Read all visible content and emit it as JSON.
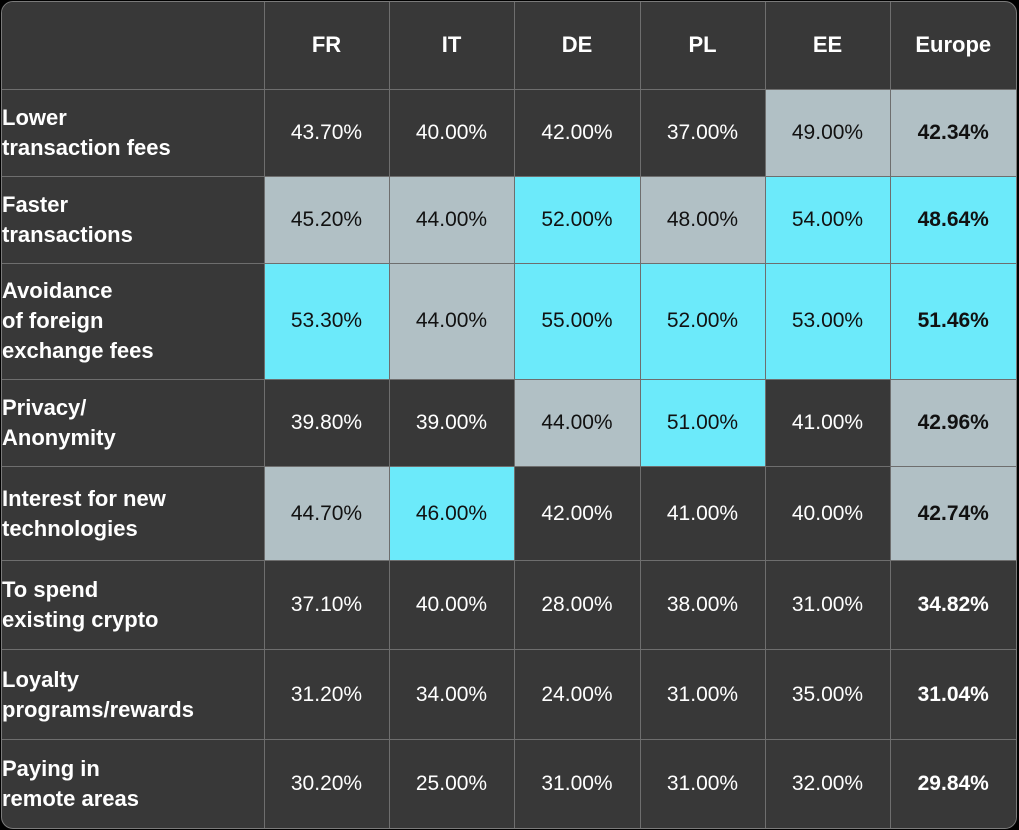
{
  "table": {
    "columns": [
      "FR",
      "IT",
      "DE",
      "PL",
      "EE",
      "Europe"
    ],
    "rows": [
      {
        "label": "Lower\ntransaction fees",
        "values": [
          "43.70%",
          "40.00%",
          "42.00%",
          "37.00%",
          "49.00%",
          "42.34%"
        ],
        "levels": [
          0,
          0,
          0,
          0,
          1,
          1
        ]
      },
      {
        "label": "Faster\ntransactions",
        "values": [
          "45.20%",
          "44.00%",
          "52.00%",
          "48.00%",
          "54.00%",
          "48.64%"
        ],
        "levels": [
          1,
          1,
          2,
          1,
          2,
          2
        ]
      },
      {
        "label": "Avoidance\nof foreign\nexchange fees",
        "values": [
          "53.30%",
          "44.00%",
          "55.00%",
          "52.00%",
          "53.00%",
          "51.46%"
        ],
        "levels": [
          2,
          1,
          2,
          2,
          2,
          2
        ]
      },
      {
        "label": "Privacy/\nAnonymity",
        "values": [
          "39.80%",
          "39.00%",
          "44.00%",
          "51.00%",
          "41.00%",
          "42.96%"
        ],
        "levels": [
          0,
          0,
          1,
          2,
          0,
          1
        ]
      },
      {
        "label": "Interest for new\ntechnologies",
        "values": [
          "44.70%",
          "46.00%",
          "42.00%",
          "41.00%",
          "40.00%",
          "42.74%"
        ],
        "levels": [
          1,
          2,
          0,
          0,
          0,
          1
        ]
      },
      {
        "label": "To spend\nexisting crypto",
        "values": [
          "37.10%",
          "40.00%",
          "28.00%",
          "38.00%",
          "31.00%",
          "34.82%"
        ],
        "levels": [
          0,
          0,
          0,
          0,
          0,
          0
        ]
      },
      {
        "label": "Loyalty\nprograms/rewards",
        "values": [
          "31.20%",
          "34.00%",
          "24.00%",
          "31.00%",
          "35.00%",
          "31.04%"
        ],
        "levels": [
          0,
          0,
          0,
          0,
          0,
          0
        ]
      },
      {
        "label": "Paying in\nremote areas",
        "values": [
          "30.20%",
          "25.00%",
          "31.00%",
          "31.00%",
          "32.00%",
          "29.84%"
        ],
        "levels": [
          0,
          0,
          0,
          0,
          0,
          0
        ]
      }
    ]
  },
  "colors": {
    "background": "#383838",
    "level_1": "#b1c0c5",
    "level_2": "#6ceafa",
    "gridline": "#6e6e6e"
  },
  "chart_data": {
    "type": "heatmap",
    "columns": [
      "FR",
      "IT",
      "DE",
      "PL",
      "EE",
      "Europe"
    ],
    "rows": [
      "Lower transaction fees",
      "Faster transactions",
      "Avoidance of foreign exchange fees",
      "Privacy/ Anonymity",
      "Interest for new technologies",
      "To spend existing crypto",
      "Loyalty programs/rewards",
      "Paying in remote areas"
    ],
    "values": [
      [
        43.7,
        40.0,
        42.0,
        37.0,
        49.0,
        42.34
      ],
      [
        45.2,
        44.0,
        52.0,
        48.0,
        54.0,
        48.64
      ],
      [
        53.3,
        44.0,
        55.0,
        52.0,
        53.0,
        51.46
      ],
      [
        39.8,
        39.0,
        44.0,
        51.0,
        41.0,
        42.96
      ],
      [
        44.7,
        46.0,
        42.0,
        41.0,
        40.0,
        42.74
      ],
      [
        37.1,
        40.0,
        28.0,
        38.0,
        31.0,
        34.82
      ],
      [
        31.2,
        34.0,
        24.0,
        31.0,
        35.0,
        31.04
      ],
      [
        30.2,
        25.0,
        31.0,
        31.0,
        32.0,
        29.84
      ]
    ],
    "unit": "%"
  }
}
